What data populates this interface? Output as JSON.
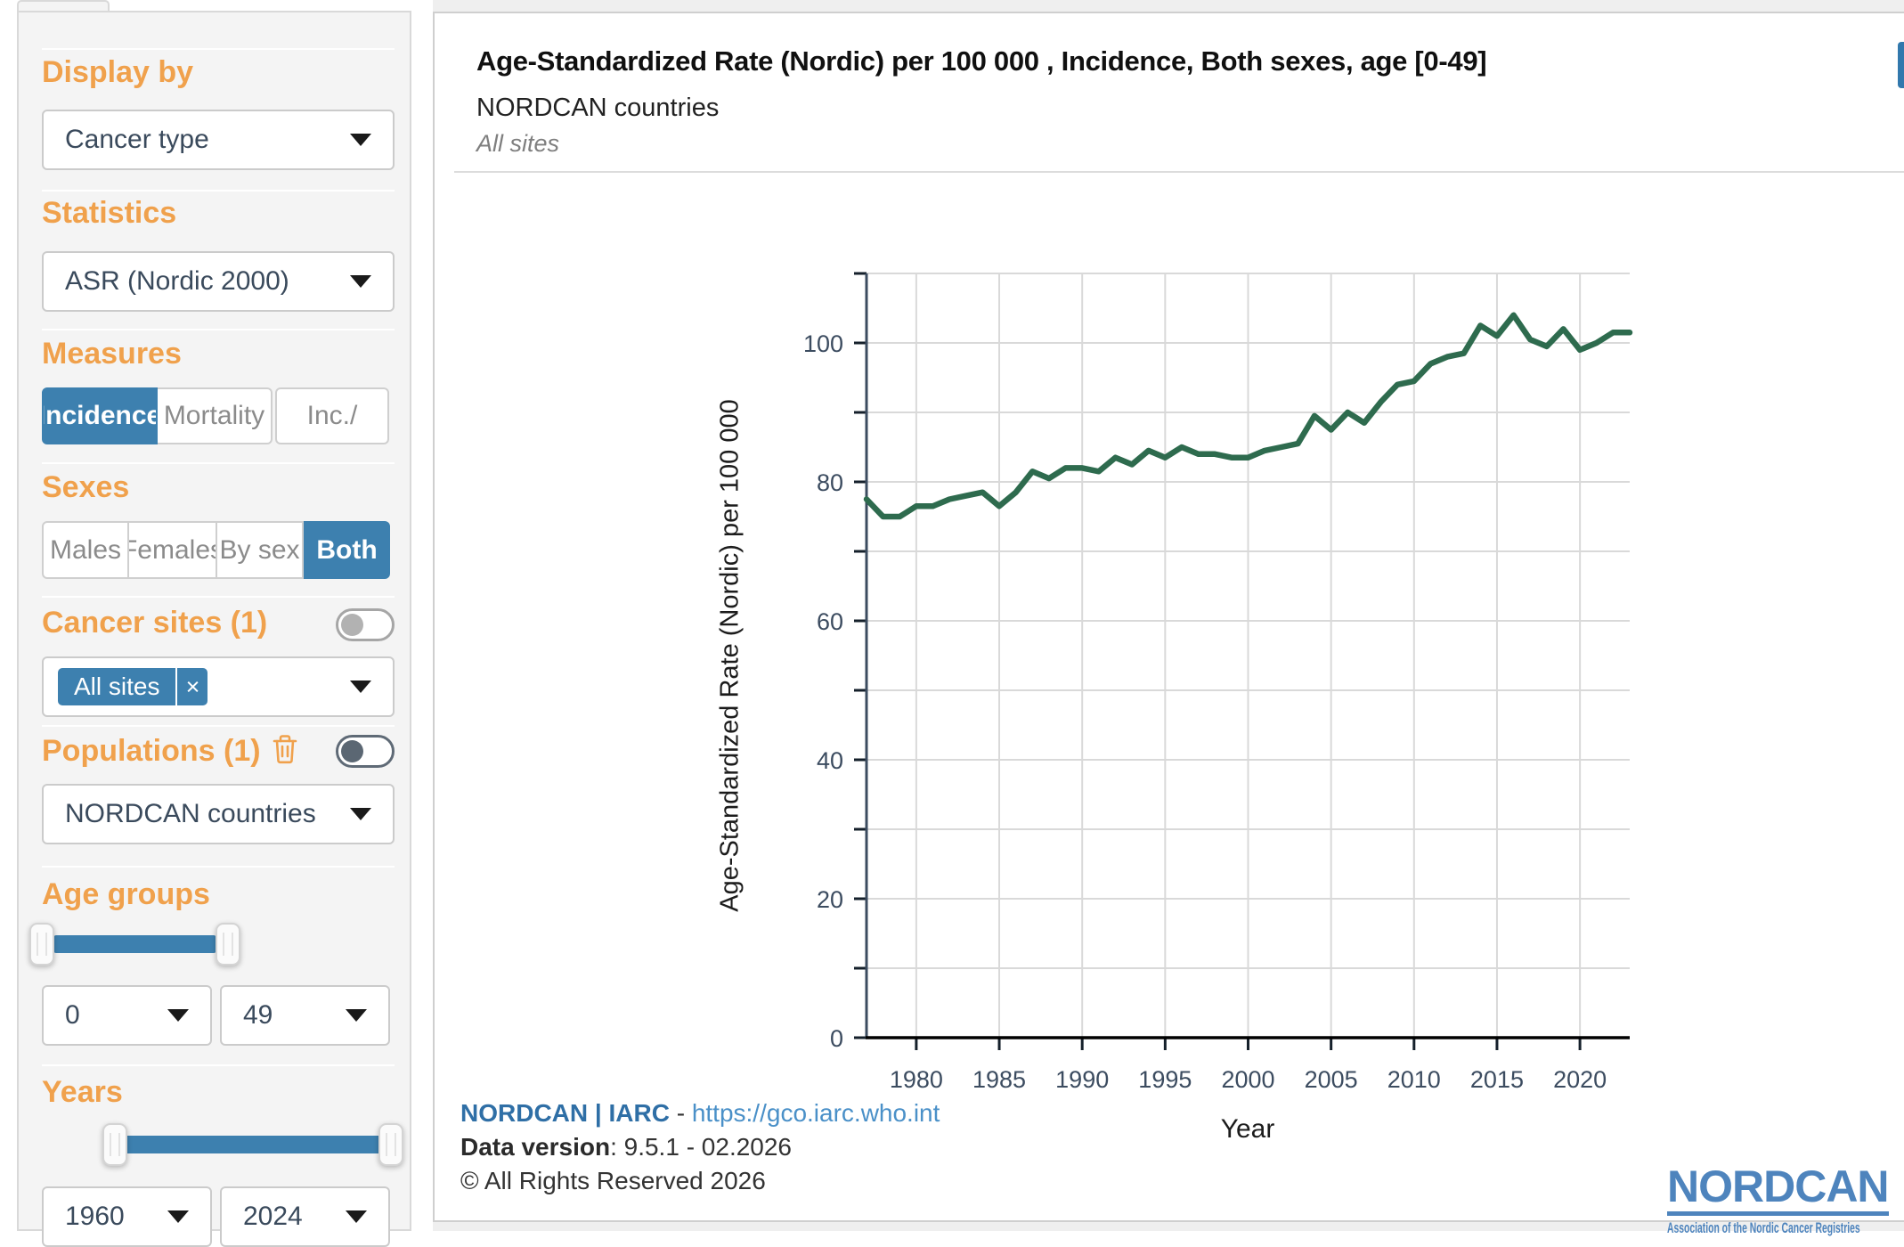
{
  "colors": {
    "accent_blue": "#3D80AF",
    "heading_orange": "#F0A14C",
    "series_green": "#2E6B4E",
    "link_blue": "#4A90C8",
    "brand_blue": "#2F6FA6",
    "logo_blue": "#4E84BD"
  },
  "sidebar": {
    "display_by": {
      "heading": "Display by",
      "selected": "Cancer type"
    },
    "statistics": {
      "heading": "Statistics",
      "selected": "ASR (Nordic 2000)"
    },
    "measures": {
      "heading": "Measures",
      "options": [
        "Incidence",
        "Mortality",
        "Inc./"
      ],
      "selected": "Incidence"
    },
    "sexes": {
      "heading": "Sexes",
      "options": [
        "Males",
        "Females",
        "By sex",
        "Both"
      ],
      "selected": "Both"
    },
    "cancer_sites": {
      "heading": "Cancer sites (1)",
      "chips": [
        {
          "label": "All sites",
          "remove": "×"
        }
      ],
      "toggle_on": false
    },
    "populations": {
      "heading": "Populations (1)",
      "selected": "NORDCAN countries",
      "toggle_on": false
    },
    "age_groups": {
      "heading": "Age groups",
      "from": "0",
      "to": "49"
    },
    "years": {
      "heading": "Years",
      "from": "1960",
      "to": "2024"
    }
  },
  "chart": {
    "title": "Age-Standardized Rate (Nordic) per 100 000 , Incidence, Both sexes, age [0-49]",
    "subtitle": "NORDCAN countries",
    "site_label": "All sites"
  },
  "chart_data": {
    "type": "line",
    "title": "Age-Standardized Rate (Nordic) per 100 000 , Incidence, Both sexes, age [0-49]",
    "xlabel": "Year",
    "ylabel": "Age-Standardized Rate (Nordic) per 100 000",
    "xlim": [
      1977,
      2023
    ],
    "ylim": [
      0,
      110
    ],
    "xticks": [
      1980,
      1985,
      1990,
      1995,
      2000,
      2005,
      2010,
      2015,
      2020
    ],
    "ytick_labels": [
      0,
      20,
      40,
      60,
      80,
      100
    ],
    "ygrid_step": 10,
    "grid": true,
    "legend": false,
    "series_color": "#2E6B4E",
    "x": [
      1977,
      1978,
      1979,
      1980,
      1981,
      1982,
      1983,
      1984,
      1985,
      1986,
      1987,
      1988,
      1989,
      1990,
      1991,
      1992,
      1993,
      1994,
      1995,
      1996,
      1997,
      1998,
      1999,
      2000,
      2001,
      2002,
      2003,
      2004,
      2005,
      2006,
      2007,
      2008,
      2009,
      2010,
      2011,
      2012,
      2013,
      2014,
      2015,
      2016,
      2017,
      2018,
      2019,
      2020,
      2021,
      2022,
      2023
    ],
    "values": [
      77.5,
      75,
      75,
      76.5,
      76.5,
      77.5,
      78,
      78.5,
      76.5,
      78.5,
      81.5,
      80.5,
      82,
      82,
      81.5,
      83.5,
      82.5,
      84.5,
      83.5,
      85,
      84,
      84,
      83.5,
      83.5,
      84.5,
      85,
      85.5,
      89.5,
      87.5,
      90,
      88.5,
      91.5,
      94,
      94.5,
      97,
      98,
      98.5,
      102.5,
      101,
      104,
      100.5,
      99.5,
      102,
      99,
      100,
      101.5,
      101.5
    ]
  },
  "footer": {
    "brand_pair": "NORDCAN | IARC",
    "separator": " - ",
    "url": "https://gco.iarc.who.int",
    "data_version_label": "Data version",
    "data_version_value": ": 9.5.1 - 02.2026",
    "copyright": "© All Rights Reserved 2026"
  },
  "logo": {
    "name": "NORDCAN",
    "tagline": "Association of the Nordic Cancer Registries"
  }
}
